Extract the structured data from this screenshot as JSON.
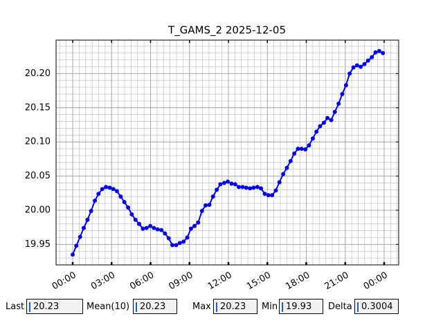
{
  "chart_data": {
    "type": "line",
    "title": "T_GAMS_2 2025-12-05",
    "color": "#0000ee",
    "grid": true,
    "x": [
      0,
      0.28,
      0.57,
      0.85,
      1.14,
      1.42,
      1.71,
      1.99,
      2.28,
      2.56,
      2.85,
      3.13,
      3.41,
      3.7,
      3.98,
      4.27,
      4.55,
      4.84,
      5.12,
      5.41,
      5.69,
      5.98,
      6.26,
      6.54,
      6.83,
      7.11,
      7.4,
      7.68,
      7.97,
      8.25,
      8.54,
      8.82,
      9.11,
      9.39,
      9.67,
      9.96,
      10.24,
      10.53,
      10.81,
      11.1,
      11.38,
      11.67,
      11.95,
      12.24,
      12.52,
      12.8,
      13.09,
      13.37,
      13.66,
      13.94,
      14.23,
      14.51,
      14.8,
      15.08,
      15.37,
      15.65,
      15.93,
      16.22,
      16.5,
      16.79,
      17.07,
      17.36,
      17.64,
      17.93,
      18.21,
      18.5,
      18.78,
      19.06,
      19.35,
      19.63,
      19.92,
      20.2,
      20.49,
      20.77,
      21.06,
      21.34,
      21.63,
      21.91,
      22.19,
      22.48,
      22.76,
      23.05,
      23.33,
      23.62,
      23.9
    ],
    "values": [
      19.935,
      19.948,
      19.961,
      19.974,
      19.986,
      19.999,
      20.014,
      20.024,
      20.031,
      20.034,
      20.033,
      20.031,
      20.028,
      20.02,
      20.012,
      20.004,
      19.994,
      19.986,
      19.98,
      19.973,
      19.974,
      19.977,
      19.974,
      19.972,
      19.971,
      19.966,
      19.959,
      19.949,
      19.949,
      19.952,
      19.954,
      19.96,
      19.973,
      19.977,
      19.982,
      19.999,
      20.007,
      20.008,
      20.02,
      20.03,
      20.038,
      20.04,
      20.042,
      20.039,
      20.038,
      20.034,
      20.034,
      20.033,
      20.032,
      20.033,
      20.034,
      20.032,
      20.024,
      20.022,
      20.022,
      20.029,
      20.041,
      20.053,
      20.062,
      20.072,
      20.083,
      20.09,
      20.09,
      20.089,
      20.095,
      20.105,
      20.115,
      20.123,
      20.128,
      20.135,
      20.132,
      20.144,
      20.156,
      20.17,
      20.183,
      20.2,
      20.209,
      20.212,
      20.21,
      20.214,
      20.219,
      20.224,
      20.231,
      20.233,
      20.23
    ],
    "xlim": [
      -1.28,
      25.12
    ],
    "ylim": [
      19.92,
      20.249
    ],
    "xticks": [
      {
        "value": 0,
        "label": "00:00"
      },
      {
        "value": 3,
        "label": "03:00"
      },
      {
        "value": 6,
        "label": "06:00"
      },
      {
        "value": 9,
        "label": "09:00"
      },
      {
        "value": 12,
        "label": "12:00"
      },
      {
        "value": 15,
        "label": "15:00"
      },
      {
        "value": 18,
        "label": "18:00"
      },
      {
        "value": 21,
        "label": "21:00"
      },
      {
        "value": 24,
        "label": "00:00"
      }
    ],
    "yticks": [
      19.95,
      {
        "value": 20,
        "label": "20.00"
      },
      20.05,
      {
        "value": 20.1,
        "label": "20.10"
      },
      20.15,
      {
        "value": 20.2,
        "label": "20.20"
      }
    ],
    "xminorticks": [
      -1,
      -0.5,
      0,
      0.5,
      1,
      1.5,
      2,
      2.5,
      3,
      3.5,
      4,
      4.5,
      5,
      5.5,
      6,
      6.5,
      7,
      7.5,
      8,
      8.5,
      9,
      9.5,
      10,
      10.5,
      11,
      11.5,
      12,
      12.5,
      13,
      13.5,
      14,
      14.5,
      15,
      15.5,
      16,
      16.5,
      17,
      17.5,
      18,
      18.5,
      19,
      19.5,
      20,
      20.5,
      21,
      21.5,
      22,
      22.5,
      23,
      23.5,
      24,
      24.5,
      25
    ],
    "yminorticks": [
      19.92,
      19.93,
      19.94,
      19.95,
      19.96,
      19.97,
      19.98,
      19.99,
      20,
      20.01,
      20.02,
      20.03,
      20.04,
      20.05,
      20.06,
      20.07,
      20.08,
      20.09,
      20.1,
      20.11,
      20.12,
      20.13,
      20.14,
      20.15,
      20.16,
      20.17,
      20.18,
      20.19,
      20.2,
      20.21,
      20.22,
      20.23,
      20.24
    ]
  },
  "status_fields": [
    {
      "label": "Last",
      "value": "20.23"
    },
    {
      "label": "Mean(10)",
      "value": "20.23"
    },
    {
      "label": "Max",
      "value": "20.23"
    },
    {
      "label": "Min",
      "value": "19.93"
    },
    {
      "label": "Delta",
      "value": "0.3004"
    }
  ]
}
